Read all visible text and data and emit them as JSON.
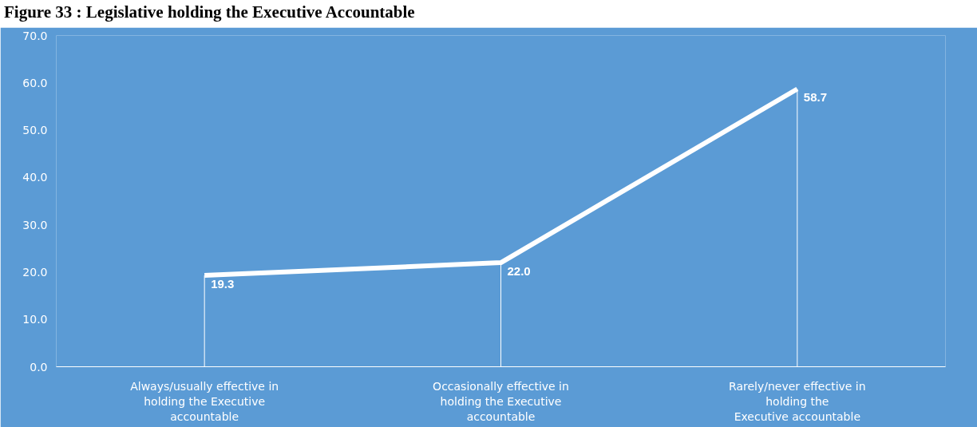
{
  "chart_data": {
    "type": "line",
    "title": "Figure 33 : Legislative holding the Executive Accountable",
    "categories": [
      "Always/usually effective in\nholding the Executive\naccountable",
      "Occasionally effective in\nholding the Executive\naccountable",
      "Rarely/never effective in\nholding the\nExecutive accountable"
    ],
    "series": [
      {
        "color": "#ffffff",
        "values": [
          19.3,
          22.0,
          58.7
        ]
      }
    ],
    "value_labels": [
      "19.3",
      "22.0",
      "58.7"
    ],
    "ylim": [
      0,
      70
    ],
    "yticks": [
      {
        "value": 0,
        "label": "0.0"
      },
      {
        "value": 10,
        "label": "10.0"
      },
      {
        "value": 20,
        "label": "20.0"
      },
      {
        "value": 30,
        "label": "30.0"
      },
      {
        "value": 40,
        "label": "40.0"
      },
      {
        "value": 50,
        "label": "50.0"
      },
      {
        "value": 60,
        "label": "60.0"
      },
      {
        "value": 70,
        "label": "70.0"
      }
    ],
    "grid": "x",
    "marker": "none",
    "line_style": "solid"
  }
}
